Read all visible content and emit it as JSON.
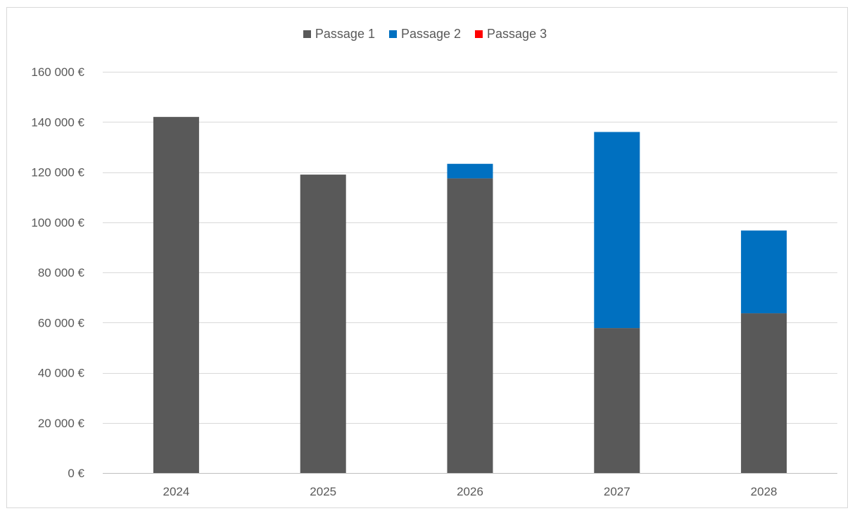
{
  "chart_data": {
    "type": "bar",
    "stacked": true,
    "title": "",
    "xlabel": "",
    "ylabel": "",
    "categories": [
      "2024",
      "2025",
      "2026",
      "2027",
      "2028"
    ],
    "series": [
      {
        "name": "Passage 1",
        "color": "#595959",
        "values": [
          142000,
          119000,
          117500,
          57800,
          63700
        ]
      },
      {
        "name": "Passage 2",
        "color": "#0070c0",
        "values": [
          0,
          0,
          5800,
          78200,
          33000
        ]
      },
      {
        "name": "Passage 3",
        "color": "#ff0000",
        "values": [
          0,
          0,
          0,
          0,
          0
        ]
      }
    ],
    "ylim": [
      0,
      160000
    ],
    "yticks": [
      0,
      20000,
      40000,
      60000,
      80000,
      100000,
      120000,
      140000,
      160000
    ],
    "ytick_labels": [
      "0 €",
      "20 000 €",
      "40 000 €",
      "60 000 €",
      "80 000 €",
      "100 000 €",
      "120 000 €",
      "140 000 €",
      "160 000 €"
    ],
    "grid": true,
    "legend_position": "top"
  }
}
